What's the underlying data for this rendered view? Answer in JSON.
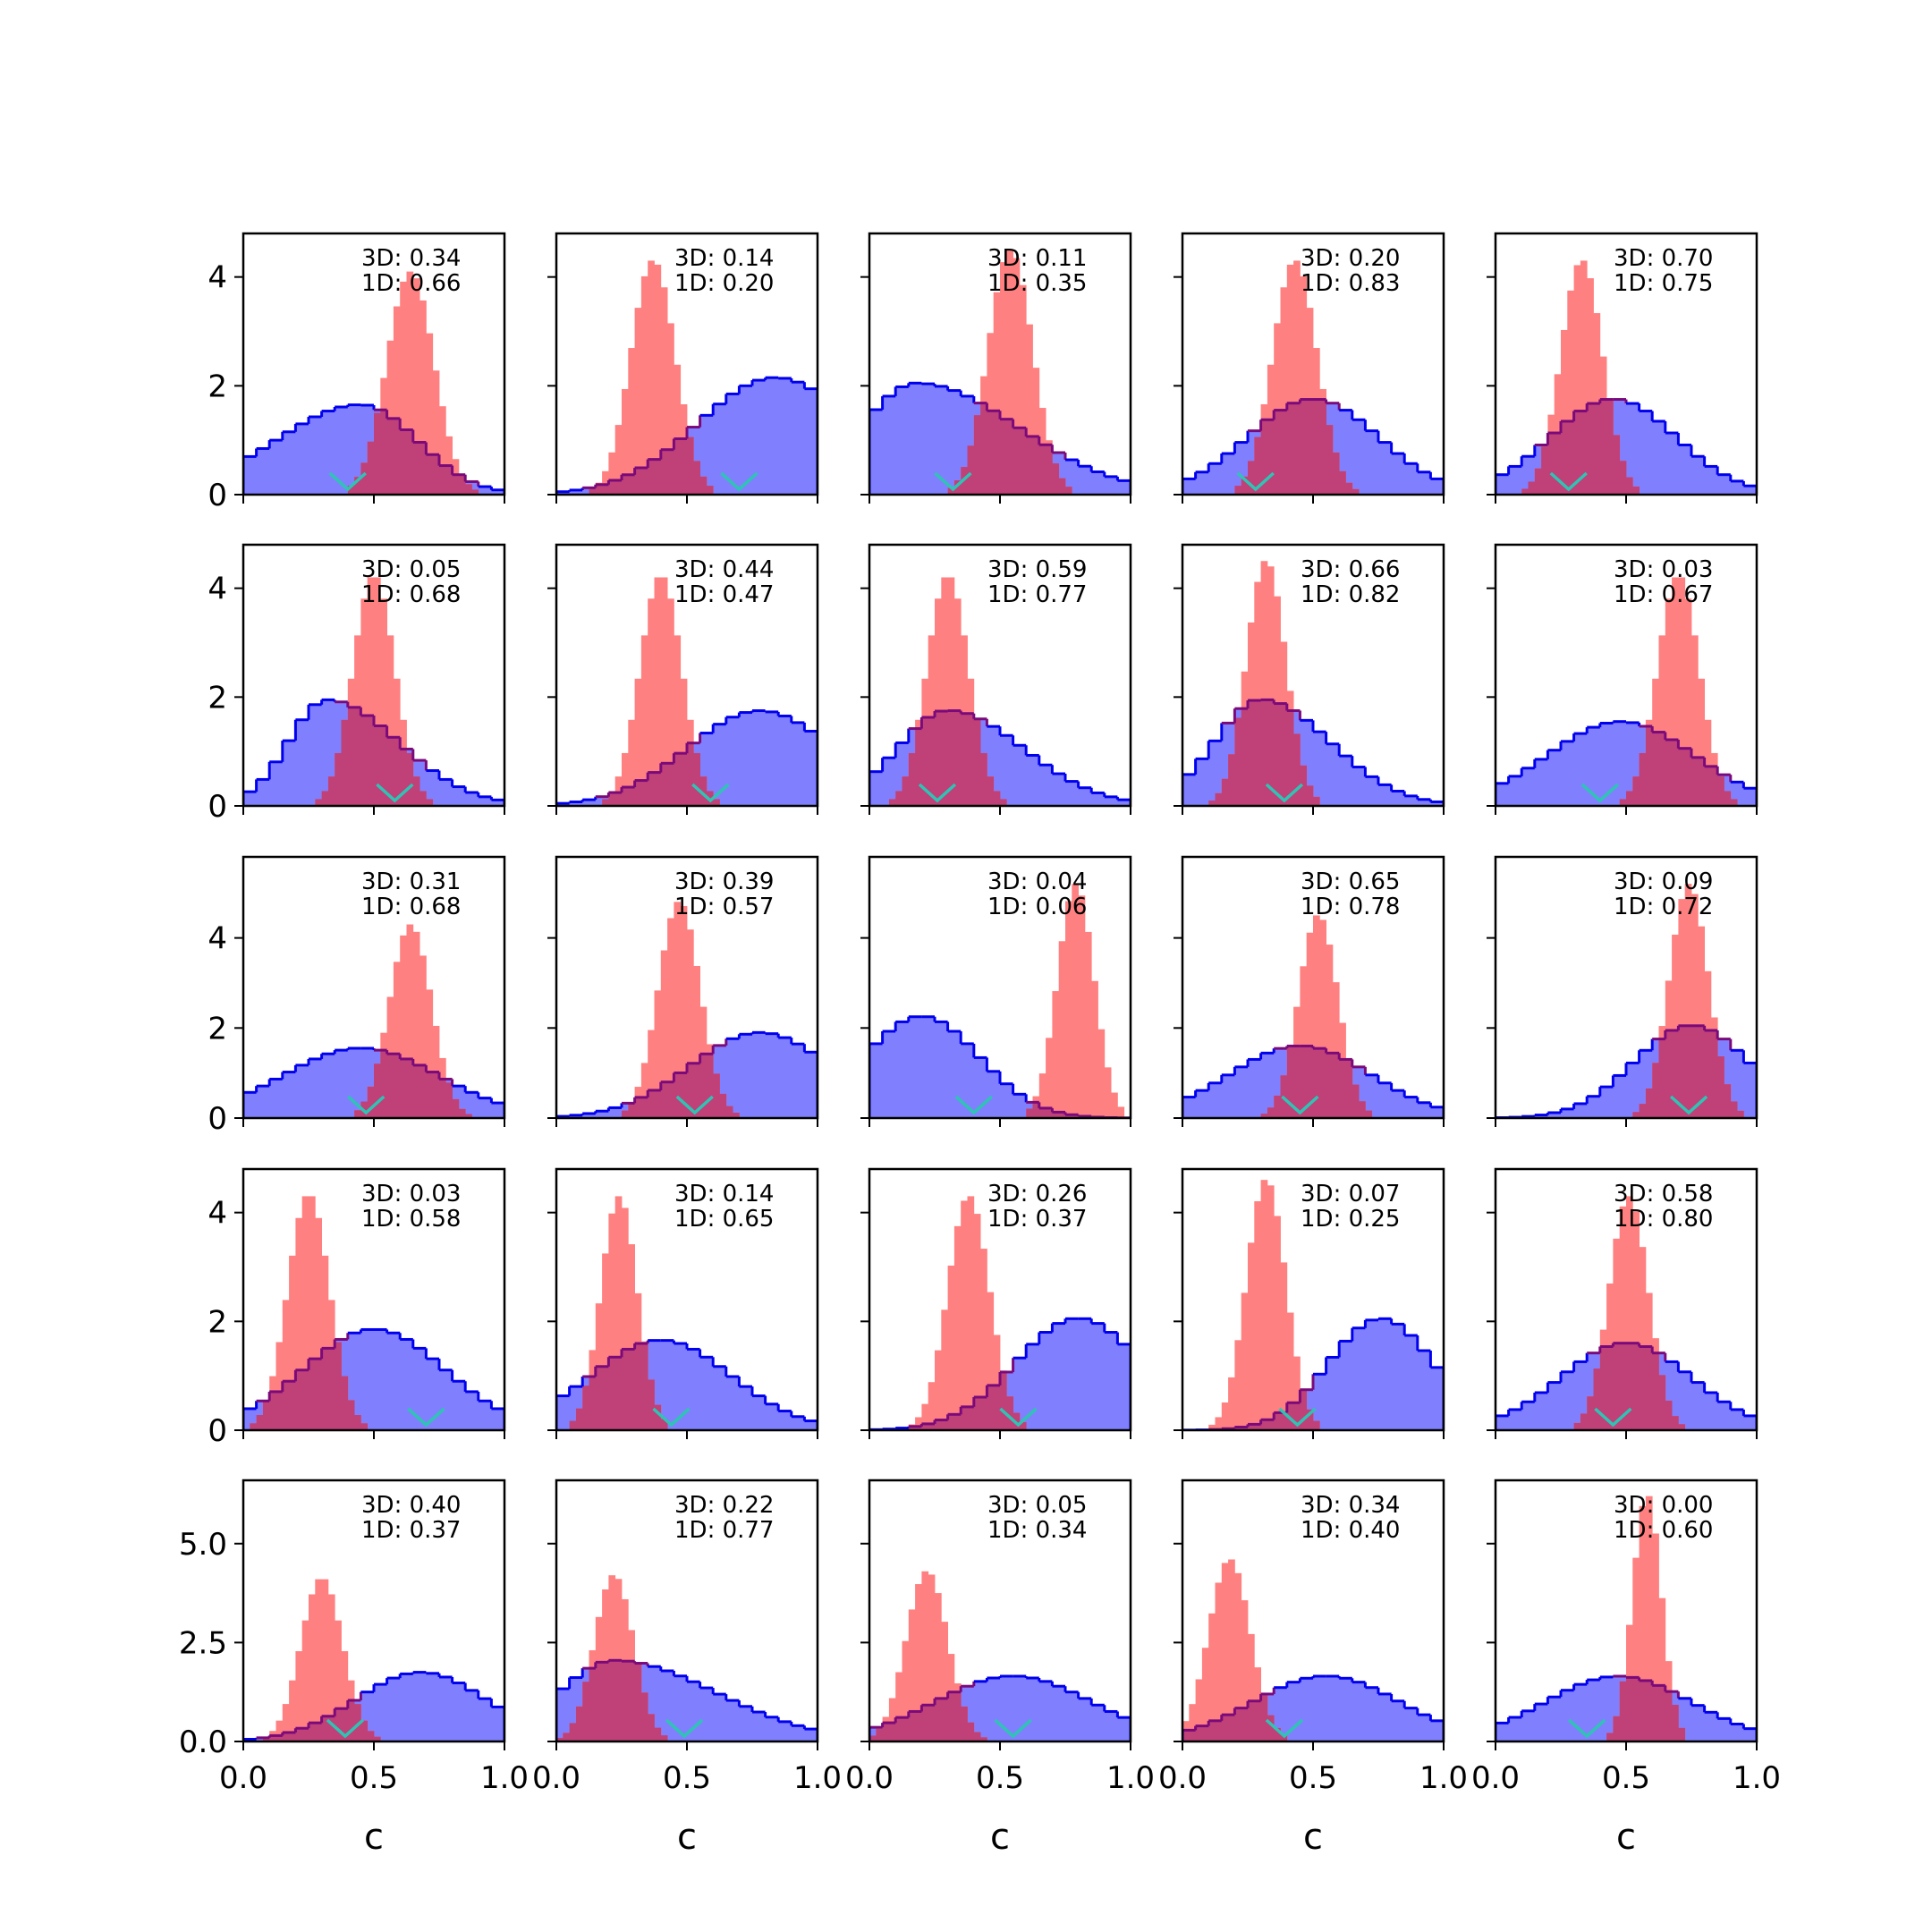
{
  "figure": {
    "xlabel": "c"
  },
  "colors": {
    "broad_fill": "#8080ff",
    "broad_line": "#0000ee",
    "narrow_fill": "#ff8080",
    "overlap_fill": "#c04078",
    "overlap_line": "#7a0a7a",
    "marker": "#2ec4b4",
    "axis": "#000000"
  },
  "chart_data": {
    "type": "histogram-grid",
    "rows": 5,
    "cols": 5,
    "xlim": [
      0,
      1
    ],
    "xticks": [
      "0.0",
      "0.5",
      "1.0"
    ],
    "row_ylim": [
      [
        0,
        4.8
      ],
      [
        0,
        4.8
      ],
      [
        0,
        5.8
      ],
      [
        0,
        4.8
      ],
      [
        0,
        6.6
      ]
    ],
    "row_yticks": [
      [
        "0",
        "2",
        "4"
      ],
      [
        "0",
        "2",
        "4"
      ],
      [
        "0",
        "2",
        "4"
      ],
      [
        "0",
        "2",
        "4"
      ],
      [
        "0.0",
        "2.5",
        "5.0"
      ]
    ],
    "row_ytick_values": [
      [
        0,
        2,
        4
      ],
      [
        0,
        2,
        4
      ],
      [
        0,
        2,
        4
      ],
      [
        0,
        2,
        4
      ],
      [
        0,
        2.5,
        5.0
      ]
    ],
    "bins": 20,
    "panels": [
      {
        "row": 0,
        "col": 0,
        "label_3d": "3D: 0.34",
        "label_1d": "1D: 0.66",
        "broad": {
          "mu": 0.45,
          "sd": 0.27,
          "skew": -0.2
        },
        "narrow": {
          "mu": 0.64,
          "sd": 0.09,
          "skew": 0
        },
        "marker": 0.4
      },
      {
        "row": 0,
        "col": 1,
        "label_3d": "3D: 0.14",
        "label_1d": "1D: 0.20",
        "broad": {
          "mu": 0.84,
          "sd": 0.3,
          "skew": 0
        },
        "narrow": {
          "mu": 0.37,
          "sd": 0.085,
          "skew": 0
        },
        "marker": 0.7
      },
      {
        "row": 0,
        "col": 2,
        "label_3d": "3D: 0.11",
        "label_1d": "1D: 0.35",
        "broad": {
          "mu": 0.18,
          "sd": 0.3,
          "skew": 0.3
        },
        "narrow": {
          "mu": 0.54,
          "sd": 0.085,
          "skew": 0
        },
        "marker": 0.32
      },
      {
        "row": 0,
        "col": 3,
        "label_3d": "3D: 0.20",
        "label_1d": "1D: 0.83",
        "broad": {
          "mu": 0.5,
          "sd": 0.25,
          "skew": 0
        },
        "narrow": {
          "mu": 0.43,
          "sd": 0.085,
          "skew": 0
        },
        "marker": 0.28
      },
      {
        "row": 0,
        "col": 4,
        "label_3d": "3D: 0.70",
        "label_1d": "1D: 0.75",
        "broad": {
          "mu": 0.45,
          "sd": 0.24,
          "skew": 0
        },
        "narrow": {
          "mu": 0.33,
          "sd": 0.08,
          "skew": 0
        },
        "marker": 0.28
      },
      {
        "row": 1,
        "col": 0,
        "label_3d": "3D: 0.05",
        "label_1d": "1D: 0.68",
        "broad": {
          "mu": 0.32,
          "sd": 0.21,
          "skew": 0.3
        },
        "narrow": {
          "mu": 0.5,
          "sd": 0.08,
          "skew": 0
        },
        "marker": 0.58
      },
      {
        "row": 1,
        "col": 1,
        "label_3d": "3D: 0.44",
        "label_1d": "1D: 0.47",
        "broad": {
          "mu": 0.78,
          "sd": 0.28,
          "skew": 0
        },
        "narrow": {
          "mu": 0.4,
          "sd": 0.08,
          "skew": 0
        },
        "marker": 0.59
      },
      {
        "row": 1,
        "col": 2,
        "label_3d": "3D: 0.59",
        "label_1d": "1D: 0.77",
        "broad": {
          "mu": 0.3,
          "sd": 0.24,
          "skew": 0.2
        },
        "narrow": {
          "mu": 0.3,
          "sd": 0.08,
          "skew": 0
        },
        "marker": 0.26
      },
      {
        "row": 1,
        "col": 3,
        "label_3d": "3D: 0.66",
        "label_1d": "1D: 0.82",
        "broad": {
          "mu": 0.3,
          "sd": 0.22,
          "skew": 0.2
        },
        "narrow": {
          "mu": 0.32,
          "sd": 0.075,
          "skew": 0
        },
        "marker": 0.39
      },
      {
        "row": 1,
        "col": 4,
        "label_3d": "3D: 0.03",
        "label_1d": "1D: 0.67",
        "broad": {
          "mu": 0.48,
          "sd": 0.28,
          "skew": 0
        },
        "narrow": {
          "mu": 0.7,
          "sd": 0.08,
          "skew": 0
        },
        "marker": 0.4
      },
      {
        "row": 2,
        "col": 0,
        "label_3d": "3D: 0.31",
        "label_1d": "1D: 0.68",
        "broad": {
          "mu": 0.45,
          "sd": 0.3,
          "skew": 0
        },
        "narrow": {
          "mu": 0.64,
          "sd": 0.08,
          "skew": 0
        },
        "marker": 0.47
      },
      {
        "row": 2,
        "col": 1,
        "label_3d": "3D: 0.39",
        "label_1d": "1D: 0.57",
        "broad": {
          "mu": 0.78,
          "sd": 0.27,
          "skew": 0
        },
        "narrow": {
          "mu": 0.47,
          "sd": 0.08,
          "skew": 0
        },
        "marker": 0.53
      },
      {
        "row": 2,
        "col": 2,
        "label_3d": "3D: 0.04",
        "label_1d": "1D: 0.06",
        "broad": {
          "mu": 0.2,
          "sd": 0.22,
          "skew": 0
        },
        "narrow": {
          "mu": 0.79,
          "sd": 0.07,
          "skew": 0
        },
        "marker": 0.4
      },
      {
        "row": 2,
        "col": 3,
        "label_3d": "3D: 0.65",
        "label_1d": "1D: 0.78",
        "broad": {
          "mu": 0.45,
          "sd": 0.27,
          "skew": 0
        },
        "narrow": {
          "mu": 0.52,
          "sd": 0.075,
          "skew": 0
        },
        "marker": 0.45
      },
      {
        "row": 2,
        "col": 4,
        "label_3d": "3D: 0.09",
        "label_1d": "1D: 0.72",
        "broad": {
          "mu": 0.75,
          "sd": 0.22,
          "skew": 0
        },
        "narrow": {
          "mu": 0.74,
          "sd": 0.075,
          "skew": 0
        },
        "marker": 0.74
      },
      {
        "row": 3,
        "col": 0,
        "label_3d": "3D: 0.03",
        "label_1d": "1D: 0.58",
        "broad": {
          "mu": 0.5,
          "sd": 0.27,
          "skew": 0
        },
        "narrow": {
          "mu": 0.25,
          "sd": 0.08,
          "skew": 0
        },
        "marker": 0.7
      },
      {
        "row": 3,
        "col": 1,
        "label_3d": "3D: 0.14",
        "label_1d": "1D: 0.65",
        "broad": {
          "mu": 0.4,
          "sd": 0.27,
          "skew": 0
        },
        "narrow": {
          "mu": 0.24,
          "sd": 0.07,
          "skew": 0
        },
        "marker": 0.44
      },
      {
        "row": 3,
        "col": 2,
        "label_3d": "3D: 0.26",
        "label_1d": "1D: 0.37",
        "broad": {
          "mu": 0.8,
          "sd": 0.24,
          "skew": 0
        },
        "narrow": {
          "mu": 0.38,
          "sd": 0.08,
          "skew": 0
        },
        "marker": 0.57
      },
      {
        "row": 3,
        "col": 3,
        "label_3d": "3D: 0.07",
        "label_1d": "1D: 0.25",
        "broad": {
          "mu": 0.76,
          "sd": 0.2,
          "skew": 0
        },
        "narrow": {
          "mu": 0.32,
          "sd": 0.075,
          "skew": 0
        },
        "marker": 0.44
      },
      {
        "row": 3,
        "col": 4,
        "label_3d": "3D: 0.58",
        "label_1d": "1D: 0.80",
        "broad": {
          "mu": 0.5,
          "sd": 0.25,
          "skew": 0
        },
        "narrow": {
          "mu": 0.51,
          "sd": 0.075,
          "skew": 0
        },
        "marker": 0.45
      },
      {
        "row": 4,
        "col": 0,
        "label_3d": "3D: 0.40",
        "label_1d": "1D: 0.37",
        "broad": {
          "mu": 0.68,
          "sd": 0.25,
          "skew": 0
        },
        "narrow": {
          "mu": 0.3,
          "sd": 0.08,
          "skew": 0
        },
        "marker": 0.39
      },
      {
        "row": 4,
        "col": 1,
        "label_3d": "3D: 0.22",
        "label_1d": "1D: 0.77",
        "broad": {
          "mu": 0.22,
          "sd": 0.3,
          "skew": 0.3
        },
        "narrow": {
          "mu": 0.22,
          "sd": 0.075,
          "skew": 0
        },
        "marker": 0.49
      },
      {
        "row": 4,
        "col": 2,
        "label_3d": "3D: 0.05",
        "label_1d": "1D: 0.34",
        "broad": {
          "mu": 0.55,
          "sd": 0.3,
          "skew": 0
        },
        "narrow": {
          "mu": 0.22,
          "sd": 0.08,
          "skew": 0
        },
        "marker": 0.55
      },
      {
        "row": 4,
        "col": 3,
        "label_3d": "3D: 0.34",
        "label_1d": "1D: 0.40",
        "broad": {
          "mu": 0.55,
          "sd": 0.28,
          "skew": 0
        },
        "narrow": {
          "mu": 0.18,
          "sd": 0.08,
          "skew": 0
        },
        "marker": 0.39
      },
      {
        "row": 4,
        "col": 4,
        "label_3d": "3D: 0.00",
        "label_1d": "1D: 0.60",
        "broad": {
          "mu": 0.47,
          "sd": 0.28,
          "skew": 0
        },
        "narrow": {
          "mu": 0.58,
          "sd": 0.055,
          "skew": 0
        },
        "marker": 0.35
      }
    ]
  }
}
